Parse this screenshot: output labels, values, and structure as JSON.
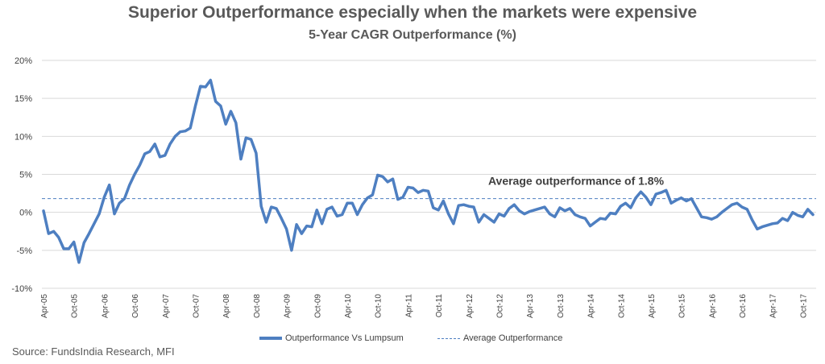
{
  "title": "Superior Outperformance especially when the markets were expensive",
  "subtitle": "5-Year CAGR Outperformance (%)",
  "source": "Source: FundsIndia Research, MFI",
  "colors": {
    "series": "#4e7fc1",
    "average": "#4e7fc1",
    "grid": "#d9d9d9",
    "text": "#595959"
  },
  "chart_data": {
    "type": "line",
    "title": "Superior Outperformance especially when the markets were expensive",
    "subtitle": "5-Year CAGR Outperformance (%)",
    "ylim": [
      -10,
      20
    ],
    "yticks": [
      -10,
      -5,
      0,
      5,
      10,
      15,
      20
    ],
    "ytick_labels": [
      "-10%",
      "-5%",
      "0%",
      "5%",
      "10%",
      "15%",
      "20%"
    ],
    "grid": "horizontal",
    "legend_position": "bottom",
    "x_start": "Apr-05",
    "x_end": "Feb-18",
    "xtick_labels": [
      "Apr-05",
      "Oct-05",
      "Apr-06",
      "Oct-06",
      "Apr-07",
      "Oct-07",
      "Apr-08",
      "Oct-08",
      "Apr-09",
      "Oct-09",
      "Apr-10",
      "Oct-10",
      "Apr-11",
      "Oct-11",
      "Apr-12",
      "Oct-12",
      "Apr-13",
      "Oct-13",
      "Apr-14",
      "Oct-14",
      "Apr-15",
      "Oct-15",
      "Apr-16",
      "Oct-16",
      "Apr-17",
      "Oct-17"
    ],
    "series": [
      {
        "name": "Outperformance Vs Lumpsum",
        "style": "solid",
        "values": [
          0.2,
          -2.8,
          -2.5,
          -3.3,
          -4.8,
          -4.8,
          -3.9,
          -6.6,
          -4,
          -2.8,
          -1.5,
          -0.2,
          2,
          3.6,
          -0.2,
          1.2,
          1.8,
          3.6,
          5,
          6.2,
          7.7,
          8,
          9,
          7.3,
          7.5,
          9,
          10,
          10.6,
          10.7,
          11.1,
          14,
          16.6,
          16.5,
          17.4,
          14.6,
          14,
          11.6,
          13.3,
          11.8,
          7,
          9.8,
          9.6,
          7.8,
          0.8,
          -1.3,
          0.7,
          0.5,
          -0.8,
          -2.2,
          -5,
          -1.6,
          -2.8,
          -1.8,
          -1.9,
          0.3,
          -1.5,
          0.4,
          0.7,
          -0.5,
          -0.3,
          1.2,
          1.2,
          -0.3,
          1,
          1.9,
          2.3,
          4.9,
          4.7,
          4,
          4.4,
          1.7,
          2,
          3.3,
          3.2,
          2.6,
          2.9,
          2.8,
          0.6,
          0.3,
          1.5,
          -0.2,
          -1.5,
          0.9,
          1,
          0.8,
          0.7,
          -1.3,
          -0.3,
          -0.8,
          -1.3,
          -0.2,
          -0.5,
          0.5,
          1,
          0.2,
          -0.2,
          0.1,
          0.3,
          0.5,
          0.7,
          -0.2,
          -0.6,
          0.6,
          0.2,
          0.5,
          -0.3,
          -0.6,
          -0.8,
          -1.8,
          -1.3,
          -0.8,
          -0.9,
          -0.1,
          -0.2,
          0.8,
          1.2,
          0.6,
          1.9,
          2.7,
          2,
          1,
          2.4,
          2.6,
          2.9,
          1.2,
          1.6,
          1.9,
          1.5,
          1.8,
          0.6,
          -0.6,
          -0.7,
          -0.9,
          -0.6,
          0,
          0.5,
          1,
          1.2,
          0.7,
          0.4,
          -1,
          -2.2,
          -1.9,
          -1.7,
          -1.5,
          -1.4,
          -0.8,
          -1.1,
          0,
          -0.4,
          -0.6,
          0.4,
          -0.3
        ]
      },
      {
        "name": "Average Outperformance",
        "style": "dashed",
        "constant": 1.8
      }
    ],
    "annotations": [
      {
        "text": "Average outperformance of 1.8%",
        "y": 1.8
      }
    ]
  }
}
